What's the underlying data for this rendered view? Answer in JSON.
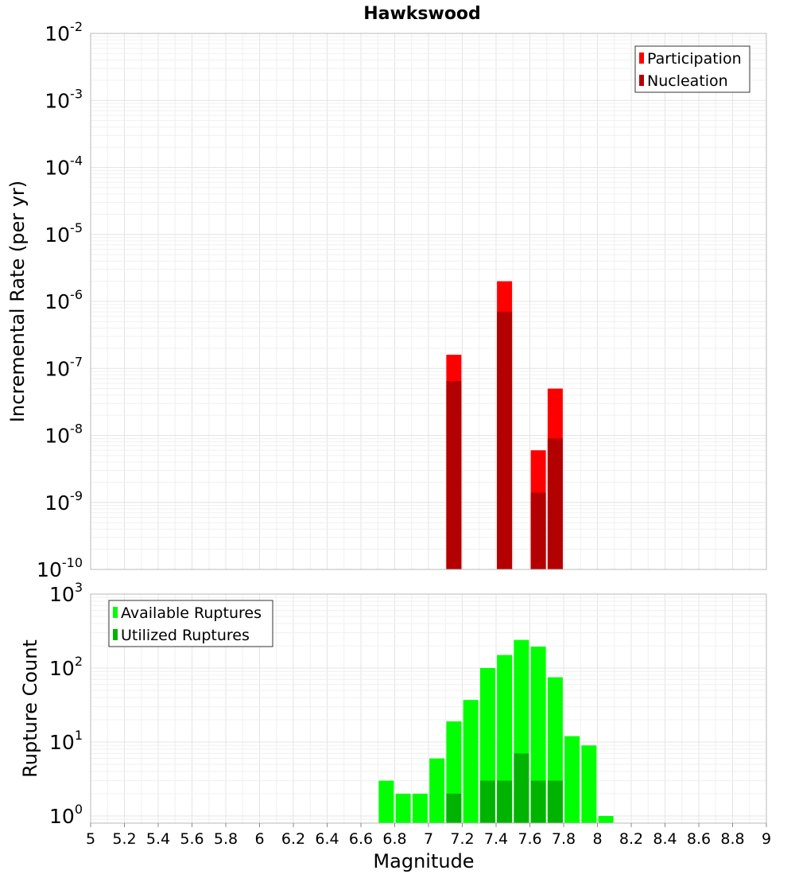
{
  "colors": {
    "participation": "#ff0000",
    "nucleation": "#b30000",
    "available": "#00ff00",
    "utilized": "#00b300",
    "grid_major": "#e4e4e4",
    "grid_minor": "#f0f0f0",
    "frame": "#b8b8b8"
  },
  "chart_data": [
    {
      "type": "bar",
      "title": "Hawkswood",
      "ylabel": "Incremental Rate (per yr)",
      "xlim": [
        5,
        9
      ],
      "ylim": [
        1e-10,
        0.01
      ],
      "yscale": "log",
      "ytick_exponents": [
        "-2",
        "-3",
        "-4",
        "-5",
        "-6",
        "-7",
        "-8",
        "-9",
        "-10"
      ],
      "grid": true,
      "legend_position": "top-right",
      "series": [
        {
          "name": "Participation",
          "points": [
            {
              "x": 7.15,
              "y": 1.6e-07
            },
            {
              "x": 7.45,
              "y": 2e-06
            },
            {
              "x": 7.65,
              "y": 6e-09
            },
            {
              "x": 7.75,
              "y": 5e-08
            }
          ]
        },
        {
          "name": "Nucleation",
          "points": [
            {
              "x": 7.15,
              "y": 6.5e-08
            },
            {
              "x": 7.45,
              "y": 7e-07
            },
            {
              "x": 7.65,
              "y": 1.4e-09
            },
            {
              "x": 7.75,
              "y": 9e-09
            }
          ]
        }
      ]
    },
    {
      "type": "bar",
      "xlabel": "Magnitude",
      "ylabel": "Rupture Count",
      "xlim": [
        5,
        9
      ],
      "ylim": [
        0.8,
        1000
      ],
      "yscale": "log",
      "ytick_exponents": [
        "3",
        "2",
        "1",
        "0"
      ],
      "xticks": [
        "5",
        "5.2",
        "5.4",
        "5.6",
        "5.8",
        "6",
        "6.2",
        "6.4",
        "6.6",
        "6.8",
        "7",
        "7.2",
        "7.4",
        "7.6",
        "7.8",
        "8",
        "8.2",
        "8.4",
        "8.6",
        "8.8",
        "9"
      ],
      "grid": true,
      "legend_position": "top-left",
      "series": [
        {
          "name": "Available Ruptures",
          "points": [
            {
              "x": 6.75,
              "y": 3
            },
            {
              "x": 6.85,
              "y": 2
            },
            {
              "x": 6.95,
              "y": 2
            },
            {
              "x": 7.05,
              "y": 6
            },
            {
              "x": 7.15,
              "y": 19
            },
            {
              "x": 7.25,
              "y": 37
            },
            {
              "x": 7.35,
              "y": 100
            },
            {
              "x": 7.45,
              "y": 150
            },
            {
              "x": 7.55,
              "y": 240
            },
            {
              "x": 7.65,
              "y": 195
            },
            {
              "x": 7.75,
              "y": 75
            },
            {
              "x": 7.85,
              "y": 12
            },
            {
              "x": 7.95,
              "y": 9
            },
            {
              "x": 8.05,
              "y": 1
            }
          ]
        },
        {
          "name": "Utilized Ruptures",
          "points": [
            {
              "x": 7.15,
              "y": 2
            },
            {
              "x": 7.35,
              "y": 3
            },
            {
              "x": 7.45,
              "y": 3
            },
            {
              "x": 7.55,
              "y": 7
            },
            {
              "x": 7.65,
              "y": 3
            },
            {
              "x": 7.75,
              "y": 3
            }
          ]
        }
      ]
    }
  ]
}
